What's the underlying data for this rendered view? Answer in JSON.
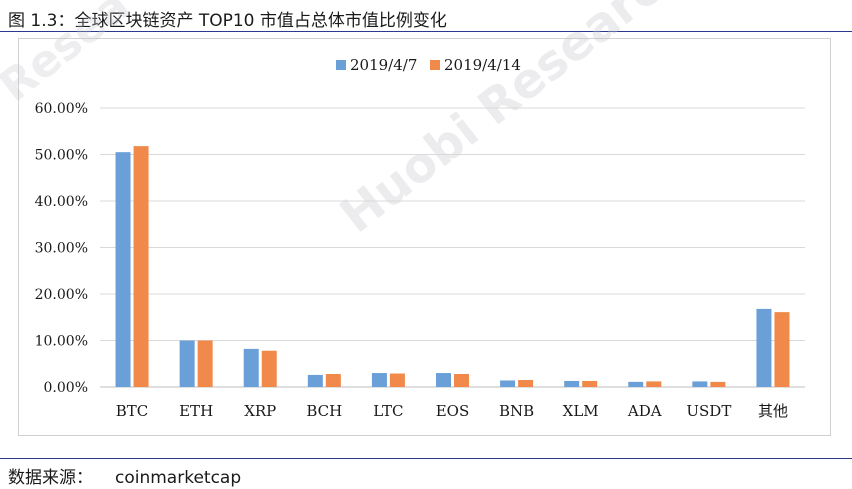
{
  "figure": {
    "title": "图 1.3：全球区块链资产 TOP10 市值占总体市值比例变化",
    "source_label": "数据来源：",
    "source_value": "coinmarketcap",
    "watermark": "Huobi Research",
    "watermark_corner": "Resea"
  },
  "chart_data": {
    "type": "bar",
    "title": "",
    "xlabel": "",
    "ylabel": "",
    "categories": [
      "BTC",
      "ETH",
      "XRP",
      "BCH",
      "LTC",
      "EOS",
      "BNB",
      "XLM",
      "ADA",
      "USDT",
      "其他"
    ],
    "series": [
      {
        "name": "2019/4/7",
        "color": "#6a9fd8",
        "values": [
          50.5,
          10.0,
          8.2,
          2.6,
          3.0,
          3.0,
          1.4,
          1.3,
          1.1,
          1.2,
          16.8
        ]
      },
      {
        "name": "2019/4/14",
        "color": "#f0894a",
        "values": [
          51.8,
          10.0,
          7.8,
          2.8,
          2.9,
          2.8,
          1.5,
          1.3,
          1.2,
          1.1,
          16.1
        ]
      }
    ],
    "ylim": [
      0,
      60
    ],
    "yticks": [
      "0.00%",
      "10.00%",
      "20.00%",
      "30.00%",
      "40.00%",
      "50.00%",
      "60.00%"
    ],
    "grid": true,
    "legend_position": "top-center"
  }
}
